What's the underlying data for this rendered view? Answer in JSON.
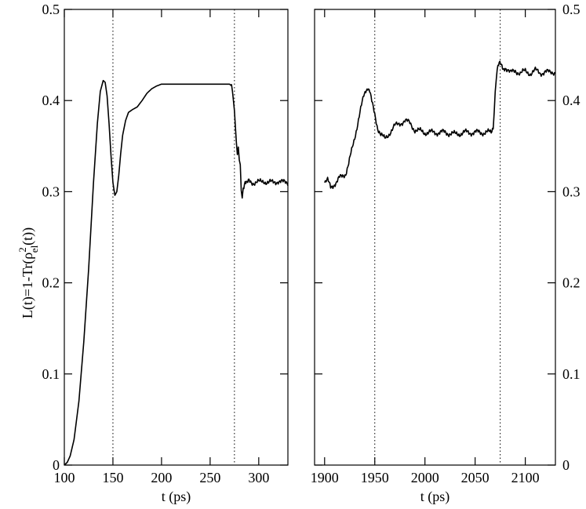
{
  "chart_data": [
    {
      "type": "line",
      "panel": "left",
      "xlabel": "t (ps)",
      "ylabel": "L(t)=1-Tr(ρ_el^2(t))",
      "ylabel_parts": {
        "main": "L(t)=1-Tr(ρ",
        "sup": "2",
        "sub": "el",
        "tail": "(t))"
      },
      "xlim": [
        100,
        330
      ],
      "ylim": [
        0,
        0.5
      ],
      "xticks": [
        100,
        150,
        200,
        250,
        300
      ],
      "yticks": [
        0,
        0.1,
        0.2,
        0.3,
        0.4,
        0.5
      ],
      "ytick_labels": [
        "0",
        "0.1",
        "0.2",
        "0.3",
        "0.4",
        "0.5"
      ],
      "vertical_lines": [
        150,
        275
      ],
      "grid": false,
      "series": [
        {
          "noise": {
            "from": 272,
            "amplitude": 0.004
          },
          "x": [
            100,
            103,
            106,
            110,
            115,
            120,
            125,
            130,
            134,
            137,
            140,
            142,
            144,
            146,
            148,
            150,
            152,
            154,
            156,
            158,
            160,
            163,
            166,
            170,
            175,
            180,
            185,
            190,
            195,
            200,
            205,
            210,
            220,
            230,
            240,
            250,
            260,
            265,
            268,
            270,
            272,
            273,
            274,
            275,
            276,
            277,
            278,
            279,
            280,
            281,
            282,
            283,
            284,
            286,
            288,
            290,
            295,
            300,
            305,
            310,
            315,
            320,
            325,
            330
          ],
          "y": [
            0.0,
            0.003,
            0.01,
            0.028,
            0.07,
            0.135,
            0.215,
            0.31,
            0.375,
            0.41,
            0.422,
            0.42,
            0.405,
            0.375,
            0.34,
            0.31,
            0.296,
            0.3,
            0.318,
            0.342,
            0.362,
            0.378,
            0.387,
            0.39,
            0.393,
            0.4,
            0.408,
            0.413,
            0.416,
            0.418,
            0.418,
            0.418,
            0.418,
            0.418,
            0.418,
            0.418,
            0.418,
            0.418,
            0.418,
            0.418,
            0.416,
            0.41,
            0.398,
            0.385,
            0.37,
            0.352,
            0.338,
            0.35,
            0.335,
            0.33,
            0.305,
            0.295,
            0.305,
            0.31,
            0.308,
            0.312,
            0.31,
            0.31,
            0.312,
            0.31,
            0.31,
            0.312,
            0.31,
            0.31
          ]
        }
      ]
    },
    {
      "type": "line",
      "panel": "right",
      "xlabel": "t (ps)",
      "xlim": [
        1890,
        2130
      ],
      "ylim": [
        0,
        0.5
      ],
      "xticks": [
        1900,
        1950,
        2000,
        2050,
        2100
      ],
      "yticks": [
        0,
        0.1,
        0.2,
        0.3,
        0.4,
        0.5
      ],
      "ytick_labels": [
        "0",
        "0.1",
        "0.2",
        "0.3",
        "0.4",
        "0.5"
      ],
      "vertical_lines": [
        1950,
        2075
      ],
      "grid": false,
      "series": [
        {
          "noise": {
            "from": 1900,
            "amplitude": 0.004
          },
          "x": [
            1900,
            1903,
            1906,
            1909,
            1912,
            1915,
            1918,
            1921,
            1924,
            1927,
            1930,
            1933,
            1936,
            1939,
            1941,
            1943,
            1945,
            1947,
            1950,
            1953,
            1956,
            1960,
            1965,
            1970,
            1975,
            1980,
            1985,
            1990,
            2000,
            2010,
            2020,
            2030,
            2040,
            2050,
            2060,
            2066,
            2068,
            2069,
            2070,
            2071,
            2072,
            2074,
            2076,
            2078,
            2080,
            2085,
            2090,
            2095,
            2100,
            2105,
            2110,
            2115,
            2120,
            2125,
            2130
          ],
          "y": [
            0.31,
            0.312,
            0.305,
            0.308,
            0.31,
            0.315,
            0.318,
            0.32,
            0.33,
            0.345,
            0.36,
            0.375,
            0.39,
            0.405,
            0.412,
            0.415,
            0.41,
            0.398,
            0.385,
            0.37,
            0.362,
            0.358,
            0.365,
            0.372,
            0.375,
            0.378,
            0.375,
            0.368,
            0.365,
            0.365,
            0.365,
            0.363,
            0.365,
            0.365,
            0.365,
            0.365,
            0.372,
            0.39,
            0.41,
            0.425,
            0.435,
            0.44,
            0.438,
            0.435,
            0.437,
            0.43,
            0.433,
            0.43,
            0.432,
            0.43,
            0.433,
            0.43,
            0.432,
            0.43,
            0.432
          ]
        }
      ]
    }
  ]
}
